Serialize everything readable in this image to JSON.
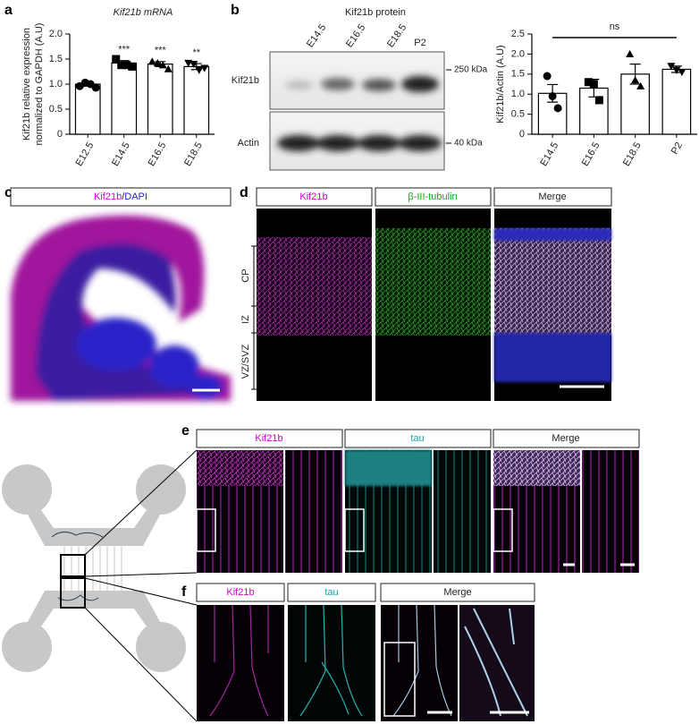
{
  "chart_data": [
    {
      "type": "bar",
      "title": "Kif21b mRNA",
      "ylabel": [
        "Kif21b relative expression",
        "normalized to GAPDH (A.U)"
      ],
      "categories": [
        "E12.5",
        "E14.5",
        "E16.5",
        "E18.5"
      ],
      "values": [
        1.0,
        1.42,
        1.4,
        1.35
      ],
      "errors": [
        0.04,
        0.05,
        0.05,
        0.06
      ],
      "points": [
        [
          0.96,
          1.03,
          1.0,
          0.93
        ],
        [
          1.5,
          1.38,
          1.38,
          1.35
        ],
        [
          1.45,
          1.42,
          1.38,
          1.3
        ],
        [
          1.42,
          1.4,
          1.28,
          1.32
        ]
      ],
      "markers": [
        "circle",
        "square",
        "triangle",
        "triangle-down"
      ],
      "sig_labels": [
        null,
        "***",
        "***",
        "**"
      ],
      "color": "#ffffff",
      "ylim": [
        0,
        2
      ],
      "yticks": [
        0,
        0.5,
        {
          "value": 1,
          "label": "1.0"
        },
        1.5,
        {
          "value": 2,
          "label": "2.0"
        }
      ]
    },
    {
      "type": "bar",
      "ylabel": [
        "Kif21b/Actin (A.U)"
      ],
      "categories": [
        "E14.5",
        "E16.5",
        "E18.5",
        "P2"
      ],
      "values": [
        1.02,
        1.15,
        1.5,
        1.62
      ],
      "errors": [
        0.22,
        0.22,
        0.25,
        0.08
      ],
      "points": [
        [
          1.45,
          0.95,
          0.65
        ],
        [
          1.3,
          1.25,
          0.85
        ],
        [
          2.0,
          1.35,
          1.2
        ],
        [
          1.7,
          1.6,
          1.55
        ]
      ],
      "markers": [
        "circle",
        "square",
        "triangle",
        "triangle-down"
      ],
      "annotation": "ns",
      "color": "#ffffff",
      "ylim": [
        0,
        2.5
      ],
      "yticks": [
        0,
        0.5,
        {
          "value": 1,
          "label": "1.0"
        },
        1.5,
        {
          "value": 2,
          "label": "2.0"
        },
        2.5
      ]
    }
  ],
  "panel_labels": [
    "a",
    "b",
    "c",
    "d",
    "e",
    "f"
  ],
  "blot": {
    "title": "Kif21b protein",
    "lanes": [
      "E14.5",
      "E16.5",
      "E18.5",
      "P2"
    ],
    "rows": [
      "Kif21b",
      "Actin"
    ],
    "markers": [
      "250 kDa",
      "40 kDa"
    ]
  },
  "panel_c": {
    "header": [
      "Kif21b",
      "/",
      "DAPI"
    ]
  },
  "panel_d": {
    "headers": [
      "Kif21b",
      "β-III-tubulin",
      "Merge"
    ],
    "zones": [
      "CP",
      "IZ",
      "VZ/SVZ"
    ]
  },
  "panel_e": {
    "headers": [
      "Kif21b",
      "tau",
      "Merge"
    ]
  },
  "panel_f": {
    "headers": [
      "Kif21b",
      "tau",
      "Merge"
    ]
  }
}
